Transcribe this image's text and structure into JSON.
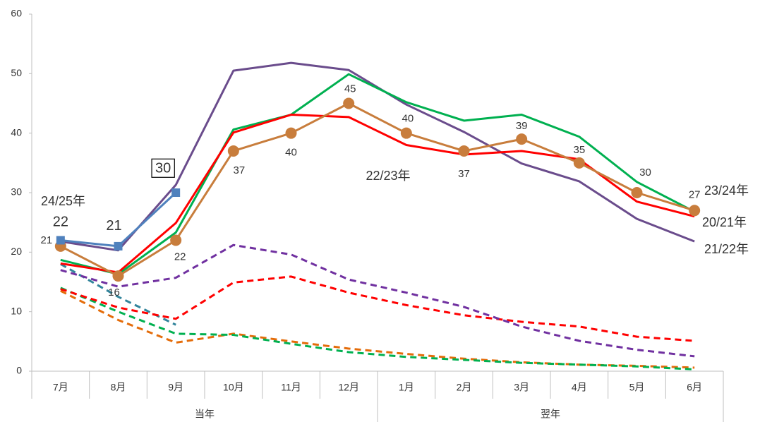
{
  "chart_data": {
    "type": "line",
    "categories": [
      "7月",
      "8月",
      "9月",
      "10月",
      "11月",
      "12月",
      "1月",
      "2月",
      "3月",
      "4月",
      "5月",
      "6月"
    ],
    "groups": [
      {
        "label": "当年",
        "span": 6
      },
      {
        "label": "翌年",
        "span": 6
      }
    ],
    "ylim": [
      0,
      60
    ],
    "yticks": [
      0,
      10,
      20,
      30,
      40,
      50,
      60
    ],
    "grid": false,
    "series": [
      {
        "color": "#31849b",
        "dash": true,
        "values": [
          18,
          12.5,
          7.8,
          null,
          null,
          null,
          null,
          null,
          null,
          null,
          null,
          null
        ]
      },
      {
        "color": "#e46c0a",
        "dash": true,
        "values": [
          13.5,
          8.6,
          4.8,
          6.3,
          5,
          3.8,
          2.9,
          2.1,
          1.5,
          1.1,
          0.9,
          0.6
        ]
      },
      {
        "color": "#00b050",
        "dash": true,
        "values": [
          14,
          10,
          6.3,
          6.1,
          4.6,
          3.2,
          2.4,
          1.9,
          1.4,
          1.1,
          0.8,
          0.3
        ]
      },
      {
        "color": "#ff0000",
        "dash": true,
        "values": [
          13.8,
          10.7,
          8.8,
          14.9,
          15.9,
          13.2,
          11.1,
          9.4,
          8.3,
          7.5,
          5.8,
          5.1
        ]
      },
      {
        "color": "#7030a0",
        "dash": true,
        "values": [
          17,
          14.2,
          15.7,
          21.2,
          19.6,
          15.4,
          13.2,
          10.8,
          7.5,
          5.1,
          3.6,
          2.5
        ]
      },
      {
        "name": "21/22年",
        "color": "#6a4c8c",
        "values": [
          21.8,
          20.3,
          31.3,
          50.5,
          51.8,
          50.6,
          44.8,
          40.2,
          34.9,
          31.9,
          25.6,
          21.8
        ]
      },
      {
        "name": "20/21年",
        "color": "#00b050",
        "values": [
          18.7,
          16.3,
          23.3,
          40.6,
          43.1,
          49.9,
          45.2,
          42.1,
          43.1,
          39.4,
          31.8,
          26.8
        ]
      },
      {
        "name": "22/23年",
        "color": "#ff0000",
        "values": [
          18.1,
          16.6,
          24.9,
          40.1,
          43.1,
          42.7,
          38,
          36.4,
          37,
          35.6,
          28.5,
          26
        ]
      },
      {
        "name": "23/24年",
        "color": "#c87d3c",
        "marker": "circle",
        "data_labels": true,
        "values": [
          21,
          16,
          22,
          37,
          40,
          45,
          40,
          37,
          39,
          35,
          30,
          27
        ]
      },
      {
        "name": "24/25年",
        "color": "#4f81bd",
        "marker": "square",
        "data_labels": true,
        "values": [
          22,
          21,
          30,
          null,
          null,
          null,
          null,
          null,
          null,
          null,
          null,
          null
        ]
      }
    ]
  }
}
